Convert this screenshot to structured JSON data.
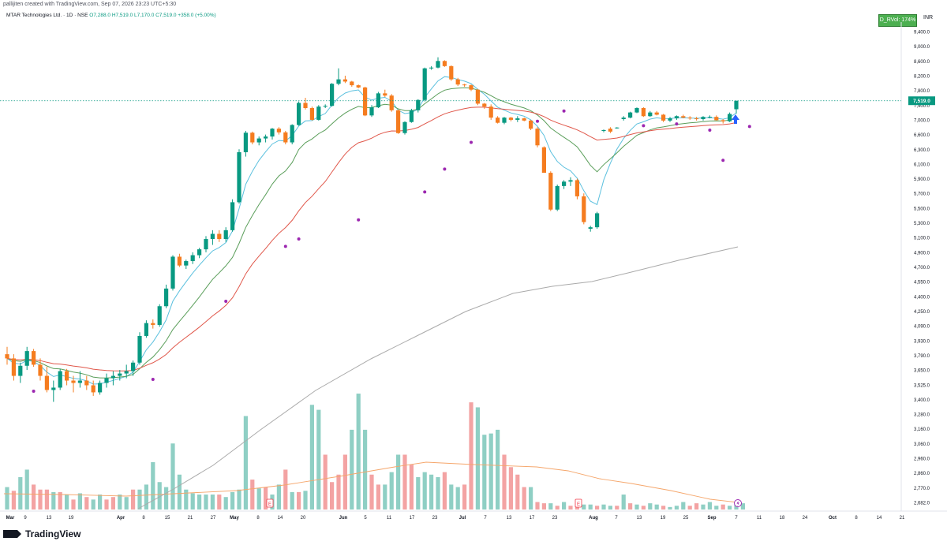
{
  "header": {
    "text": "pallijiten created with TradingView.com, Sep 07, 2026 23:23 UTC+5:30"
  },
  "symbol": {
    "name": "MTAR Technologies Ltd. · 1D · NSE",
    "ohlc": "O7,288.0  H7,519.0  L7,170.0  C7,519.0  +358.0 (+5.00%)"
  },
  "badge": {
    "label": "D_RVol: 174%",
    "color": "#4caf50"
  },
  "currency": "INR",
  "footer": {
    "brand": "TradingView"
  },
  "chart_data": {
    "type": "candlestick",
    "title": "",
    "last_price": "7,519.0",
    "colors": {
      "up": "#089981",
      "down": "#f57c1f",
      "vol_up": "#8fcfc4",
      "vol_down": "#f3a3a3",
      "ema_fast": "#5bc0de",
      "ema_mid": "#5a9e5a",
      "ema_slow": "#e0574a",
      "sma_long": "#aaaaaa",
      "vol_avg": "#f5a66b",
      "dots": "#9c27b0",
      "arrow": "#2962ff"
    },
    "y_ticks": [
      "9,400.0",
      "9,000.0",
      "8,600.0",
      "8,200.0",
      "7,800.0",
      "7,400.0",
      "7,000.0",
      "6,600.0",
      "6,300.0",
      "6,100.0",
      "5,900.0",
      "5,700.0",
      "5,500.0",
      "5,300.0",
      "5,100.0",
      "4,900.0",
      "4,700.0",
      "4,550.0",
      "4,400.0",
      "4,250.0",
      "4,090.0",
      "3,930.0",
      "3,790.0",
      "3,650.0",
      "3,525.0",
      "3,400.0",
      "3,280.0",
      "3,160.0",
      "3,060.0",
      "2,960.0",
      "2,860.0",
      "2,770.0",
      "2,682.0"
    ],
    "x_ticks": [
      "Mar",
      "9",
      "13",
      "19",
      "Apr",
      "8",
      "15",
      "21",
      "27",
      "May",
      "8",
      "14",
      "20",
      "Jun",
      "5",
      "11",
      "17",
      "23",
      "Jul",
      "7",
      "13",
      "17",
      "23",
      "Aug",
      "7",
      "13",
      "19",
      "25",
      "Sep",
      "7",
      "11",
      "18",
      "24",
      "Oct",
      "8",
      "14",
      "21"
    ],
    "candles": [
      [
        3800,
        3870,
        3700,
        3760
      ],
      [
        3760,
        3800,
        3560,
        3600
      ],
      [
        3600,
        3720,
        3540,
        3690
      ],
      [
        3690,
        3870,
        3650,
        3830
      ],
      [
        3830,
        3850,
        3680,
        3700
      ],
      [
        3700,
        3760,
        3560,
        3600
      ],
      [
        3600,
        3680,
        3460,
        3480
      ],
      [
        3480,
        3560,
        3380,
        3500
      ],
      [
        3500,
        3660,
        3480,
        3640
      ],
      [
        3640,
        3660,
        3520,
        3560
      ],
      [
        3560,
        3600,
        3460,
        3540
      ],
      [
        3540,
        3640,
        3500,
        3560
      ],
      [
        3560,
        3600,
        3480,
        3520
      ],
      [
        3520,
        3560,
        3430,
        3460
      ],
      [
        3460,
        3560,
        3440,
        3540
      ],
      [
        3540,
        3620,
        3500,
        3580
      ],
      [
        3580,
        3640,
        3520,
        3600
      ],
      [
        3600,
        3650,
        3560,
        3620
      ],
      [
        3620,
        3700,
        3580,
        3640
      ],
      [
        3640,
        3740,
        3600,
        3720
      ],
      [
        3720,
        4020,
        3700,
        3980
      ],
      [
        3980,
        4150,
        3960,
        4120
      ],
      [
        4120,
        4160,
        4060,
        4100
      ],
      [
        4100,
        4320,
        4080,
        4300
      ],
      [
        4300,
        4520,
        4280,
        4480
      ],
      [
        4480,
        4860,
        4460,
        4840
      ],
      [
        4840,
        4880,
        4700,
        4720
      ],
      [
        4720,
        4800,
        4680,
        4780
      ],
      [
        4780,
        4900,
        4740,
        4860
      ],
      [
        4860,
        4960,
        4820,
        4940
      ],
      [
        4940,
        5120,
        4900,
        5080
      ],
      [
        5080,
        5200,
        5000,
        5150
      ],
      [
        5150,
        5200,
        5040,
        5080
      ],
      [
        5080,
        5240,
        5040,
        5200
      ],
      [
        5200,
        5620,
        5180,
        5580
      ],
      [
        5580,
        6300,
        5560,
        6260
      ],
      [
        6260,
        6700,
        6200,
        6650
      ],
      [
        6650,
        6680,
        6400,
        6440
      ],
      [
        6440,
        6560,
        6380,
        6520
      ],
      [
        6520,
        6600,
        6440,
        6560
      ],
      [
        6560,
        6780,
        6500,
        6760
      ],
      [
        6760,
        6800,
        6600,
        6660
      ],
      [
        6660,
        6700,
        6400,
        6440
      ],
      [
        6440,
        6880,
        6400,
        6860
      ],
      [
        6860,
        7500,
        6840,
        7460
      ],
      [
        7460,
        7600,
        7280,
        7320
      ],
      [
        7320,
        7360,
        6980,
        7000
      ],
      [
        7000,
        7400,
        6980,
        7360
      ],
      [
        7360,
        7420,
        7320,
        7380
      ],
      [
        7380,
        8000,
        7360,
        7980
      ],
      [
        7980,
        8400,
        7940,
        8100
      ],
      [
        8100,
        8200,
        8000,
        8040
      ],
      [
        8040,
        8060,
        7900,
        7940
      ],
      [
        7940,
        7960,
        7860,
        7880
      ],
      [
        7880,
        7900,
        7100,
        7120
      ],
      [
        7120,
        7400,
        7080,
        7340
      ],
      [
        7340,
        7760,
        7320,
        7720
      ],
      [
        7720,
        7820,
        7620,
        7660
      ],
      [
        7660,
        7700,
        7220,
        7260
      ],
      [
        7260,
        7280,
        6620,
        6640
      ],
      [
        6640,
        6960,
        6600,
        6940
      ],
      [
        6940,
        7300,
        6920,
        7260
      ],
      [
        7260,
        7560,
        7200,
        7540
      ],
      [
        7540,
        8420,
        7500,
        8400
      ],
      [
        8400,
        8460,
        8360,
        8420
      ],
      [
        8420,
        8700,
        8400,
        8600
      ],
      [
        8600,
        8620,
        8440,
        8460
      ],
      [
        8460,
        8480,
        8060,
        8100
      ],
      [
        8100,
        8140,
        7920,
        7960
      ],
      [
        7960,
        7980,
        7900,
        7940
      ],
      [
        7940,
        7960,
        7780,
        7820
      ],
      [
        7820,
        7840,
        7400,
        7440
      ],
      [
        7440,
        7460,
        7300,
        7360
      ],
      [
        7360,
        7420,
        7000,
        7060
      ],
      [
        7060,
        7100,
        6900,
        6920
      ],
      [
        6920,
        7080,
        6880,
        7060
      ],
      [
        7060,
        7080,
        6960,
        7000
      ],
      [
        7000,
        7100,
        6940,
        7040
      ],
      [
        7040,
        7060,
        6960,
        6980
      ],
      [
        6980,
        7000,
        6720,
        6760
      ],
      [
        6760,
        6800,
        6340,
        6380
      ],
      [
        6340,
        6360,
        6000,
        5980
      ],
      [
        5980,
        6000,
        5460,
        5480
      ],
      [
        5480,
        5820,
        5460,
        5800
      ],
      [
        5800,
        5880,
        5760,
        5860
      ],
      [
        5860,
        5920,
        5800,
        5880
      ],
      [
        5880,
        5900,
        5620,
        5660
      ],
      [
        5660,
        5700,
        5280,
        5310
      ],
      [
        5220,
        5260,
        5180,
        5240
      ],
      [
        5240,
        5450,
        5220,
        5430
      ],
      [
        6700,
        6740,
        6660,
        6720
      ],
      [
        6760,
        6800,
        6640,
        6680
      ],
      [
        6780,
        6800,
        6760,
        6790
      ],
      [
        7020,
        7100,
        6980,
        7060
      ],
      [
        7060,
        7220,
        7040,
        7200
      ],
      [
        7200,
        7340,
        7180,
        7320
      ],
      [
        7320,
        7340,
        7080,
        7100
      ],
      [
        7100,
        7240,
        7080,
        7200
      ],
      [
        7200,
        7240,
        7120,
        7140
      ],
      [
        7140,
        7160,
        6940,
        6980
      ],
      [
        6980,
        7080,
        6940,
        7040
      ],
      [
        7040,
        7120,
        7000,
        7100
      ],
      [
        7100,
        7140,
        7040,
        7060
      ],
      [
        7060,
        7100,
        7000,
        7040
      ],
      [
        7040,
        7080,
        6980,
        7020
      ],
      [
        7020,
        7100,
        6980,
        7080
      ],
      [
        7080,
        7120,
        7040,
        7080
      ],
      [
        7080,
        7120,
        6980,
        6990
      ],
      [
        6990,
        7020,
        6900,
        6960
      ],
      [
        6960,
        7200,
        6940,
        7160
      ],
      [
        7288,
        7519,
        7170,
        7519
      ]
    ],
    "volumes": [
      [
        0.18,
        1
      ],
      [
        0.15,
        0
      ],
      [
        0.26,
        1
      ],
      [
        0.32,
        1
      ],
      [
        0.2,
        0
      ],
      [
        0.16,
        0
      ],
      [
        0.16,
        0
      ],
      [
        0.14,
        1
      ],
      [
        0.14,
        0
      ],
      [
        0.12,
        1
      ],
      [
        0.08,
        0
      ],
      [
        0.13,
        1
      ],
      [
        0.1,
        0
      ],
      [
        0.08,
        1
      ],
      [
        0.12,
        1
      ],
      [
        0.08,
        0
      ],
      [
        0.1,
        0
      ],
      [
        0.12,
        1
      ],
      [
        0.1,
        1
      ],
      [
        0.16,
        0
      ],
      [
        0.16,
        1
      ],
      [
        0.2,
        1
      ],
      [
        0.38,
        1
      ],
      [
        0.22,
        1
      ],
      [
        0.18,
        1
      ],
      [
        0.53,
        1
      ],
      [
        0.28,
        1
      ],
      [
        0.16,
        1
      ],
      [
        0.13,
        1
      ],
      [
        0.12,
        1
      ],
      [
        0.12,
        1
      ],
      [
        0.12,
        1
      ],
      [
        0.12,
        0
      ],
      [
        0.1,
        1
      ],
      [
        0.14,
        1
      ],
      [
        0.16,
        1
      ],
      [
        0.75,
        1
      ],
      [
        0.24,
        0
      ],
      [
        0.17,
        1
      ],
      [
        0.18,
        0
      ],
      [
        0.12,
        1
      ],
      [
        0.2,
        1
      ],
      [
        0.32,
        0
      ],
      [
        0.14,
        1
      ],
      [
        0.14,
        0
      ],
      [
        0.15,
        1
      ],
      [
        0.84,
        1
      ],
      [
        0.8,
        1
      ],
      [
        0.44,
        0
      ],
      [
        0.22,
        0
      ],
      [
        0.28,
        0
      ],
      [
        0.44,
        0
      ],
      [
        0.64,
        1
      ],
      [
        0.93,
        1
      ],
      [
        0.64,
        1
      ],
      [
        0.28,
        0
      ],
      [
        0.2,
        0
      ],
      [
        0.2,
        1
      ],
      [
        0.3,
        1
      ],
      [
        0.44,
        1
      ],
      [
        0.44,
        0
      ],
      [
        0.36,
        0
      ],
      [
        0.26,
        1
      ],
      [
        0.3,
        1
      ],
      [
        0.28,
        1
      ],
      [
        0.26,
        1
      ],
      [
        0.3,
        0
      ],
      [
        0.2,
        1
      ],
      [
        0.18,
        1
      ],
      [
        0.2,
        0
      ],
      [
        0.86,
        0
      ],
      [
        0.82,
        1
      ],
      [
        0.6,
        1
      ],
      [
        0.61,
        1
      ],
      [
        0.64,
        1
      ],
      [
        0.44,
        0
      ],
      [
        0.34,
        0
      ],
      [
        0.28,
        0
      ],
      [
        0.18,
        0
      ],
      [
        0.18,
        1
      ],
      [
        0.06,
        0
      ],
      [
        0.05,
        0
      ],
      [
        0.05,
        1
      ],
      [
        0.03,
        0
      ],
      [
        0.06,
        1
      ],
      [
        0.03,
        0
      ],
      [
        0.05,
        0
      ],
      [
        0.04,
        1
      ],
      [
        0.04,
        1
      ],
      [
        0.03,
        0
      ],
      [
        0.04,
        1
      ],
      [
        0.03,
        1
      ],
      [
        0.03,
        0
      ],
      [
        0.12,
        1
      ],
      [
        0.05,
        0
      ],
      [
        0.04,
        1
      ],
      [
        0.03,
        0
      ],
      [
        0.05,
        1
      ],
      [
        0.04,
        1
      ],
      [
        0.03,
        0
      ],
      [
        0.02,
        1
      ],
      [
        0.03,
        1
      ],
      [
        0.06,
        1
      ],
      [
        0.03,
        0
      ],
      [
        0.05,
        0
      ],
      [
        0.04,
        1
      ],
      [
        0.06,
        1
      ],
      [
        0.03,
        1
      ],
      [
        0.04,
        0
      ],
      [
        0.03,
        1
      ],
      [
        0.04,
        1
      ],
      [
        0.05,
        1
      ]
    ],
    "purple_dots": [
      [
        4,
        3470
      ],
      [
        22,
        3570
      ],
      [
        33,
        4350
      ],
      [
        42,
        4980
      ],
      [
        44,
        5080
      ],
      [
        53,
        5340
      ],
      [
        63,
        5720
      ],
      [
        66,
        6030
      ],
      [
        70,
        6440
      ],
      [
        80,
        6960
      ],
      [
        84,
        7240
      ],
      [
        96,
        6840
      ],
      [
        101,
        6890
      ],
      [
        106,
        6720
      ],
      [
        108,
        6150
      ],
      [
        112,
        6820
      ]
    ],
    "arrow_at": 130
  }
}
